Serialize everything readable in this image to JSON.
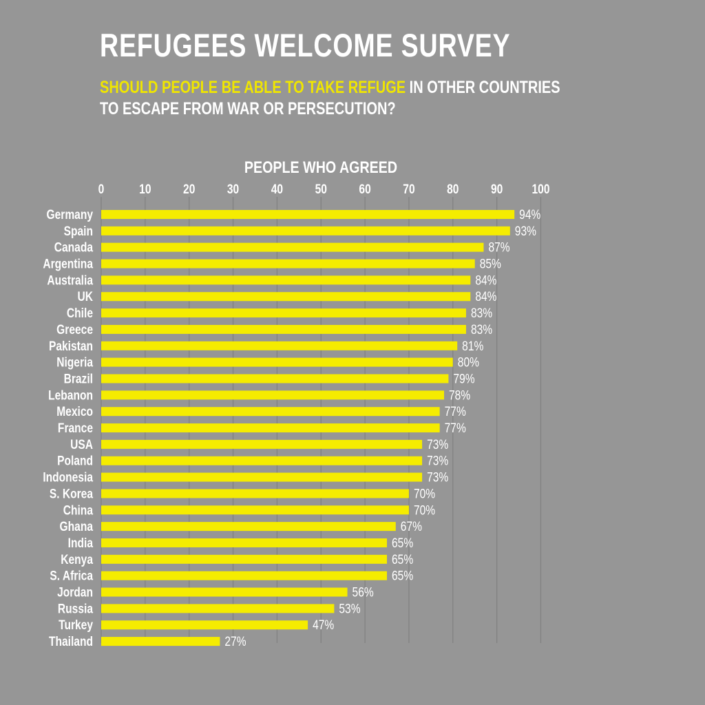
{
  "header": {
    "title": "REFUGEES WELCOME SURVEY",
    "subtitle_highlight": "SHOULD PEOPLE BE ABLE TO TAKE REFUGE",
    "subtitle_rest_line1": " IN OTHER COUNTRIES",
    "subtitle_line2": "TO ESCAPE FROM WAR OR PERSECUTION?"
  },
  "colors": {
    "background": "#969696",
    "bar": "#f5ec00",
    "highlight_text": "#f0e600",
    "text": "#ffffff",
    "grid": "#808080"
  },
  "chart_data": {
    "type": "bar",
    "orientation": "horizontal",
    "title": "PEOPLE WHO AGREED",
    "xlim": [
      0,
      100
    ],
    "x_ticks": [
      "0",
      "10",
      "20",
      "30",
      "40",
      "50",
      "60",
      "70",
      "80",
      "90",
      "100"
    ],
    "value_suffix": "%",
    "grid": "vertical",
    "categories": [
      "Germany",
      "Spain",
      "Canada",
      "Argentina",
      "Australia",
      "UK",
      "Chile",
      "Greece",
      "Pakistan",
      "Nigeria",
      "Brazil",
      "Lebanon",
      "Mexico",
      "France",
      "USA",
      "Poland",
      "Indonesia",
      "S. Korea",
      "China",
      "Ghana",
      "India",
      "Kenya",
      "S. Africa",
      "Jordan",
      "Russia",
      "Turkey",
      "Thailand"
    ],
    "values": [
      94,
      93,
      87,
      85,
      84,
      84,
      83,
      83,
      81,
      80,
      79,
      78,
      77,
      77,
      73,
      73,
      73,
      70,
      70,
      67,
      65,
      65,
      65,
      56,
      53,
      47,
      27
    ]
  }
}
